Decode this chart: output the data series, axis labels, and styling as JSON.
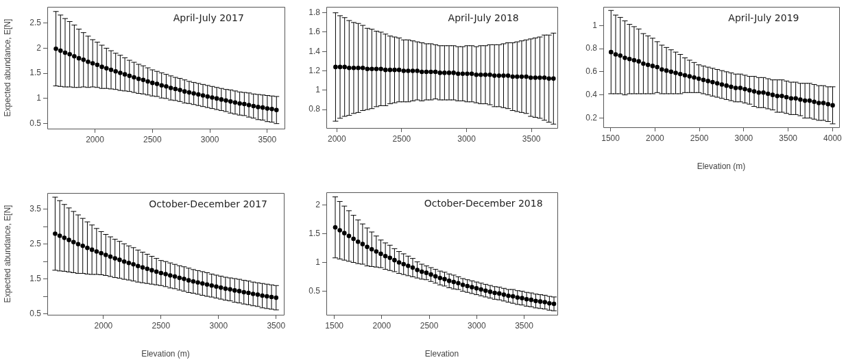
{
  "chart_data": [
    {
      "type": "scatter",
      "title": "April-July 2017",
      "ylabel": "Expected abundance, E[N]",
      "marker": "circle",
      "color": "#000000",
      "x": [
        1660,
        1700,
        1740,
        1780,
        1820,
        1860,
        1900,
        1940,
        1980,
        2020,
        2060,
        2100,
        2140,
        2180,
        2220,
        2260,
        2300,
        2340,
        2380,
        2420,
        2460,
        2500,
        2540,
        2580,
        2620,
        2660,
        2700,
        2740,
        2780,
        2820,
        2860,
        2900,
        2940,
        2980,
        3020,
        3060,
        3100,
        3140,
        3180,
        3220,
        3260,
        3300,
        3340,
        3380,
        3420,
        3460,
        3500,
        3540,
        3580
      ],
      "values": [
        1.99,
        1.95,
        1.91,
        1.88,
        1.84,
        1.8,
        1.77,
        1.73,
        1.7,
        1.67,
        1.63,
        1.6,
        1.57,
        1.54,
        1.51,
        1.48,
        1.45,
        1.42,
        1.39,
        1.37,
        1.34,
        1.31,
        1.29,
        1.26,
        1.24,
        1.21,
        1.19,
        1.17,
        1.14,
        1.12,
        1.1,
        1.08,
        1.06,
        1.04,
        1.02,
        1.0,
        0.98,
        0.96,
        0.94,
        0.92,
        0.9,
        0.89,
        0.87,
        0.85,
        0.83,
        0.82,
        0.8,
        0.79,
        0.77
      ],
      "errors": [
        0.74,
        0.71,
        0.68,
        0.65,
        0.62,
        0.58,
        0.54,
        0.51,
        0.47,
        0.45,
        0.43,
        0.4,
        0.38,
        0.36,
        0.35,
        0.33,
        0.31,
        0.3,
        0.29,
        0.28,
        0.27,
        0.26,
        0.25,
        0.25,
        0.24,
        0.24,
        0.23,
        0.23,
        0.23,
        0.22,
        0.22,
        0.22,
        0.22,
        0.22,
        0.22,
        0.22,
        0.22,
        0.22,
        0.23,
        0.23,
        0.23,
        0.23,
        0.24,
        0.24,
        0.25,
        0.25,
        0.26,
        0.26,
        0.27
      ],
      "xlim": [
        1585,
        3650
      ],
      "ylim": [
        0.4,
        2.82
      ],
      "xticks": [
        2000,
        2500,
        3000,
        3500
      ],
      "yticks": [
        0.5,
        1.0,
        1.5,
        2.0,
        2.5
      ]
    },
    {
      "type": "scatter",
      "title": "April-July 2018",
      "marker": "circle",
      "color": "#000000",
      "x": [
        1990,
        2025,
        2060,
        2095,
        2130,
        2165,
        2200,
        2235,
        2270,
        2305,
        2340,
        2375,
        2410,
        2445,
        2480,
        2515,
        2550,
        2585,
        2620,
        2655,
        2690,
        2725,
        2760,
        2795,
        2830,
        2865,
        2900,
        2935,
        2970,
        3005,
        3040,
        3075,
        3110,
        3145,
        3180,
        3215,
        3250,
        3285,
        3320,
        3355,
        3390,
        3425,
        3460,
        3495,
        3530,
        3565,
        3600,
        3635,
        3670
      ],
      "values": [
        1.24,
        1.24,
        1.24,
        1.23,
        1.23,
        1.23,
        1.23,
        1.22,
        1.22,
        1.22,
        1.22,
        1.21,
        1.21,
        1.21,
        1.21,
        1.2,
        1.2,
        1.2,
        1.2,
        1.19,
        1.19,
        1.19,
        1.19,
        1.18,
        1.18,
        1.18,
        1.18,
        1.17,
        1.17,
        1.17,
        1.17,
        1.16,
        1.16,
        1.16,
        1.16,
        1.15,
        1.15,
        1.15,
        1.15,
        1.14,
        1.14,
        1.14,
        1.14,
        1.13,
        1.13,
        1.13,
        1.13,
        1.12,
        1.12
      ],
      "errors": [
        0.56,
        0.53,
        0.51,
        0.49,
        0.47,
        0.46,
        0.44,
        0.42,
        0.41,
        0.39,
        0.38,
        0.37,
        0.35,
        0.34,
        0.33,
        0.32,
        0.32,
        0.31,
        0.3,
        0.3,
        0.29,
        0.29,
        0.28,
        0.28,
        0.28,
        0.28,
        0.28,
        0.28,
        0.28,
        0.29,
        0.29,
        0.29,
        0.3,
        0.3,
        0.31,
        0.32,
        0.32,
        0.33,
        0.34,
        0.35,
        0.36,
        0.37,
        0.38,
        0.4,
        0.41,
        0.42,
        0.44,
        0.45,
        0.47
      ],
      "xlim": [
        1919,
        3700
      ],
      "ylim": [
        0.61,
        1.86
      ],
      "xticks": [
        2000,
        2500,
        3000,
        3500
      ],
      "yticks": [
        0.8,
        1.0,
        1.2,
        1.4,
        1.6,
        1.8
      ]
    },
    {
      "type": "scatter",
      "title": "April-July 2019",
      "xlabel": "Elevation (m)",
      "marker": "circle",
      "color": "#000000",
      "x": [
        1505,
        1557,
        1609,
        1661,
        1713,
        1765,
        1817,
        1869,
        1921,
        1973,
        2025,
        2077,
        2129,
        2181,
        2233,
        2285,
        2337,
        2389,
        2441,
        2493,
        2545,
        2597,
        2649,
        2701,
        2753,
        2805,
        2857,
        2909,
        2961,
        3013,
        3065,
        3117,
        3169,
        3221,
        3273,
        3325,
        3377,
        3429,
        3481,
        3533,
        3585,
        3637,
        3689,
        3741,
        3793,
        3845,
        3897,
        3949,
        4001
      ],
      "values": [
        0.77,
        0.75,
        0.74,
        0.72,
        0.71,
        0.7,
        0.69,
        0.67,
        0.66,
        0.65,
        0.64,
        0.62,
        0.61,
        0.6,
        0.59,
        0.58,
        0.57,
        0.56,
        0.55,
        0.54,
        0.53,
        0.52,
        0.51,
        0.5,
        0.49,
        0.48,
        0.47,
        0.46,
        0.46,
        0.45,
        0.44,
        0.43,
        0.42,
        0.42,
        0.41,
        0.4,
        0.39,
        0.39,
        0.38,
        0.37,
        0.37,
        0.36,
        0.35,
        0.35,
        0.34,
        0.33,
        0.33,
        0.32,
        0.31
      ],
      "errors": [
        0.36,
        0.34,
        0.33,
        0.32,
        0.3,
        0.29,
        0.28,
        0.26,
        0.25,
        0.24,
        0.22,
        0.21,
        0.2,
        0.19,
        0.18,
        0.17,
        0.15,
        0.14,
        0.13,
        0.12,
        0.12,
        0.12,
        0.12,
        0.12,
        0.12,
        0.12,
        0.12,
        0.12,
        0.12,
        0.12,
        0.12,
        0.13,
        0.13,
        0.13,
        0.13,
        0.13,
        0.14,
        0.14,
        0.14,
        0.14,
        0.14,
        0.14,
        0.15,
        0.15,
        0.15,
        0.15,
        0.15,
        0.15,
        0.16
      ],
      "xlim": [
        1418,
        4074
      ],
      "ylim": [
        0.12,
        1.16
      ],
      "xticks": [
        1500,
        2000,
        2500,
        3000,
        3500,
        4000
      ],
      "yticks": [
        0.2,
        0.4,
        0.6,
        0.8,
        1.0
      ]
    },
    {
      "type": "scatter",
      "title": "October-December 2017",
      "xlabel": "Elevation (m)",
      "ylabel": "Expected abundance, E[N]",
      "marker": "circle",
      "color": "#000000",
      "x": [
        1580,
        1620,
        1660,
        1700,
        1740,
        1780,
        1820,
        1860,
        1900,
        1940,
        1980,
        2020,
        2060,
        2100,
        2140,
        2180,
        2220,
        2260,
        2300,
        2340,
        2380,
        2420,
        2460,
        2500,
        2540,
        2580,
        2620,
        2660,
        2700,
        2740,
        2780,
        2820,
        2860,
        2900,
        2940,
        2980,
        3020,
        3060,
        3100,
        3140,
        3180,
        3220,
        3260,
        3300,
        3340,
        3380,
        3420,
        3460,
        3500
      ],
      "values": [
        2.8,
        2.74,
        2.68,
        2.62,
        2.56,
        2.5,
        2.45,
        2.39,
        2.34,
        2.29,
        2.24,
        2.19,
        2.14,
        2.09,
        2.05,
        2.0,
        1.96,
        1.92,
        1.87,
        1.83,
        1.79,
        1.75,
        1.71,
        1.67,
        1.64,
        1.6,
        1.57,
        1.53,
        1.5,
        1.46,
        1.43,
        1.4,
        1.37,
        1.34,
        1.31,
        1.28,
        1.25,
        1.22,
        1.2,
        1.17,
        1.15,
        1.12,
        1.1,
        1.07,
        1.05,
        1.02,
        1.0,
        0.98,
        0.96
      ],
      "errors": [
        1.05,
        1.01,
        0.96,
        0.92,
        0.88,
        0.84,
        0.79,
        0.75,
        0.71,
        0.66,
        0.62,
        0.59,
        0.57,
        0.55,
        0.53,
        0.51,
        0.49,
        0.48,
        0.46,
        0.44,
        0.42,
        0.4,
        0.38,
        0.36,
        0.36,
        0.36,
        0.35,
        0.35,
        0.35,
        0.35,
        0.34,
        0.34,
        0.34,
        0.34,
        0.33,
        0.33,
        0.33,
        0.33,
        0.33,
        0.34,
        0.34,
        0.34,
        0.34,
        0.34,
        0.34,
        0.35,
        0.35,
        0.35,
        0.35
      ],
      "xlim": [
        1512,
        3567
      ],
      "ylim": [
        0.47,
        3.97
      ],
      "xticks": [
        2000,
        2500,
        3000,
        3500
      ],
      "yticks": [
        0.5,
        {
          "value": 1.0,
          "label": null
        },
        1.5,
        {
          "value": 2.0,
          "label": null
        },
        2.5,
        {
          "value": 3.0,
          "label": null
        },
        3.5
      ]
    },
    {
      "type": "scatter",
      "title": "October-December 2018",
      "xlabel": "Elevation",
      "marker": "circle",
      "color": "#000000",
      "x": [
        1510,
        1558,
        1606,
        1654,
        1702,
        1750,
        1798,
        1846,
        1894,
        1942,
        1990,
        2038,
        2086,
        2134,
        2182,
        2230,
        2278,
        2326,
        2374,
        2422,
        2470,
        2518,
        2566,
        2614,
        2662,
        2710,
        2758,
        2806,
        2854,
        2902,
        2950,
        2998,
        3046,
        3094,
        3142,
        3190,
        3238,
        3286,
        3334,
        3382,
        3430,
        3478,
        3526,
        3574,
        3622,
        3670,
        3718,
        3766,
        3814
      ],
      "values": [
        1.61,
        1.56,
        1.51,
        1.46,
        1.41,
        1.36,
        1.32,
        1.27,
        1.23,
        1.19,
        1.15,
        1.11,
        1.08,
        1.04,
        1.0,
        0.97,
        0.94,
        0.91,
        0.87,
        0.84,
        0.82,
        0.79,
        0.76,
        0.73,
        0.71,
        0.68,
        0.66,
        0.64,
        0.61,
        0.59,
        0.57,
        0.55,
        0.53,
        0.51,
        0.49,
        0.47,
        0.46,
        0.44,
        0.42,
        0.41,
        0.39,
        0.38,
        0.36,
        0.35,
        0.33,
        0.32,
        0.31,
        0.29,
        0.28
      ],
      "errors": [
        0.53,
        0.5,
        0.47,
        0.44,
        0.41,
        0.38,
        0.35,
        0.33,
        0.3,
        0.27,
        0.24,
        0.23,
        0.22,
        0.2,
        0.19,
        0.18,
        0.17,
        0.16,
        0.14,
        0.13,
        0.12,
        0.12,
        0.12,
        0.12,
        0.12,
        0.12,
        0.12,
        0.11,
        0.11,
        0.11,
        0.11,
        0.11,
        0.11,
        0.11,
        0.11,
        0.11,
        0.11,
        0.11,
        0.11,
        0.12,
        0.12,
        0.12,
        0.12,
        0.12,
        0.12,
        0.12,
        0.12,
        0.12,
        0.12
      ],
      "xlim": [
        1416,
        3850
      ],
      "ylim": [
        0.09,
        2.22
      ],
      "xticks": [
        1500,
        2000,
        2500,
        3000,
        3500
      ],
      "yticks": [
        0.5,
        1.0,
        1.5,
        2.0
      ]
    }
  ]
}
